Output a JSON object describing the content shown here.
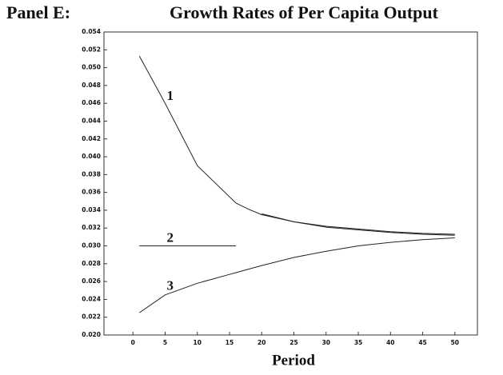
{
  "chart_data": {
    "type": "line",
    "panel": "Panel E:",
    "title": "Growth Rates of Per Capita Output",
    "x_label": "Period",
    "x": [
      1,
      5,
      10,
      15,
      16,
      18,
      20,
      25,
      30,
      35,
      40,
      45,
      50
    ],
    "series": [
      {
        "name": "1",
        "color": "#222222",
        "values": [
          0.0513,
          0.046,
          0.039,
          0.0355,
          0.0348,
          0.0341,
          0.0335,
          0.0327,
          0.0322,
          0.0319,
          0.0316,
          0.0314,
          0.0313
        ]
      },
      {
        "name": "2",
        "color": "#222222",
        "values": [
          0.03,
          0.03,
          0.03,
          0.03,
          0.03,
          null,
          0.0336,
          0.0327,
          0.0321,
          0.0318,
          0.0315,
          0.0313,
          0.0312
        ]
      },
      {
        "name": "3",
        "color": "#222222",
        "values": [
          0.0225,
          0.0245,
          0.0258,
          0.0268,
          0.027,
          0.0274,
          0.0278,
          0.0287,
          0.0294,
          0.03,
          0.0304,
          0.0307,
          0.0309
        ]
      }
    ],
    "xlim": [
      -4.5,
      53.5
    ],
    "xticks": [
      0,
      5,
      10,
      15,
      20,
      25,
      30,
      35,
      40,
      45,
      50
    ],
    "ylim": [
      0.02,
      0.054
    ],
    "yticks": [
      {
        "value": 0.02,
        "label": "0.020"
      },
      0.022,
      0.024,
      0.026,
      0.028,
      {
        "value": 0.03,
        "label": "0.030"
      },
      0.032,
      0.034,
      0.036,
      0.038,
      {
        "value": 0.04,
        "label": "0.040"
      },
      0.042,
      0.044,
      0.046,
      0.048,
      {
        "value": 0.05,
        "label": "0.050"
      },
      0.052,
      0.054
    ]
  }
}
